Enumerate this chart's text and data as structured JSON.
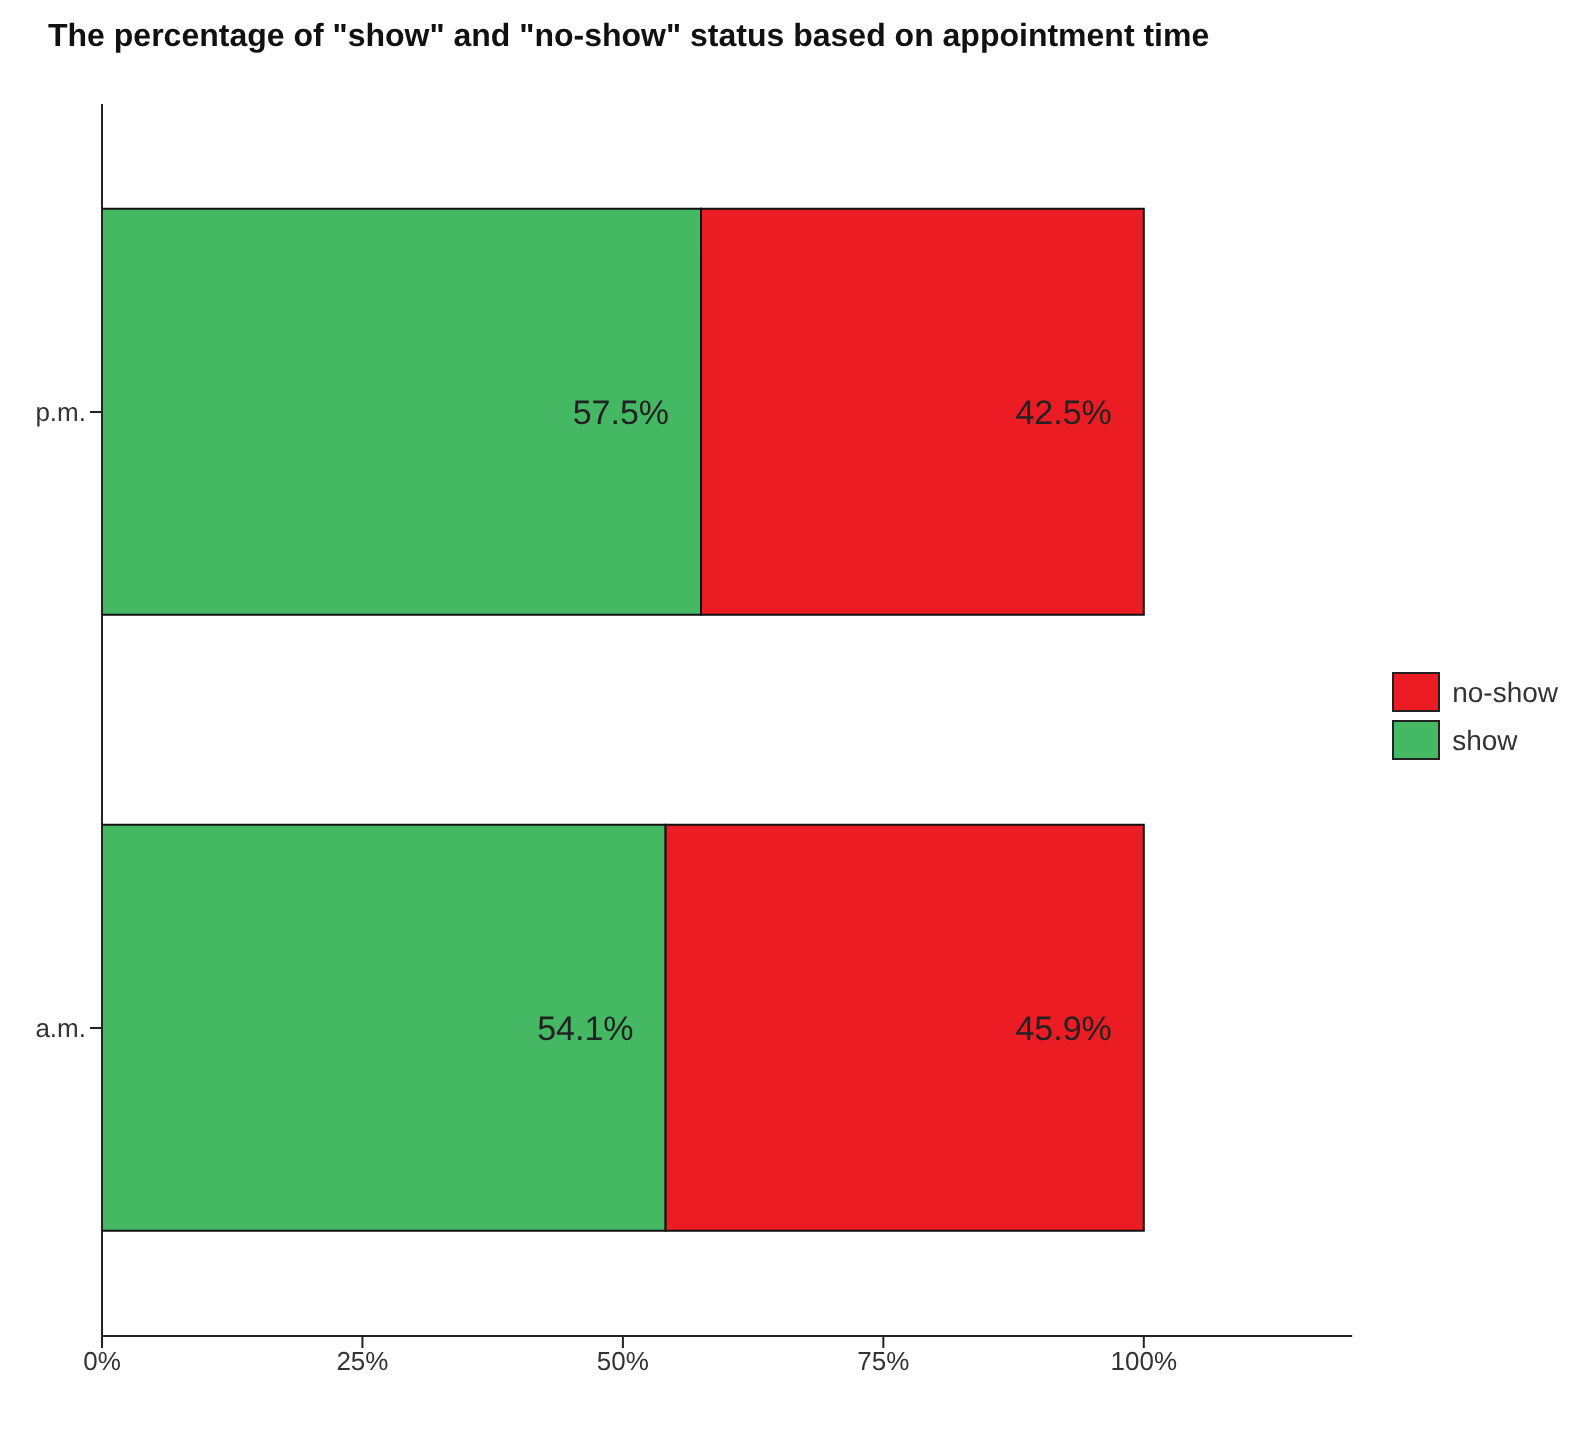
{
  "chart_data": {
    "type": "bar",
    "orientation": "horizontal",
    "stacked": true,
    "title": "The percentage of \"show\" and \"no-show\" status based on appointment time",
    "categories": [
      "p.m.",
      "a.m."
    ],
    "series": [
      {
        "name": "show",
        "color": "#45b864",
        "values": [
          57.5,
          54.1
        ],
        "value_labels": [
          "57.5%",
          "54.1%"
        ]
      },
      {
        "name": "no-show",
        "color": "#ec1c24",
        "values": [
          42.5,
          45.9
        ],
        "value_labels": [
          "42.5%",
          "45.9%"
        ]
      }
    ],
    "xlim": [
      0,
      120
    ],
    "xticks": [
      {
        "value": 0,
        "label": "0%"
      },
      {
        "value": 25,
        "label": "25%"
      },
      {
        "value": 50,
        "label": "50%"
      },
      {
        "value": 75,
        "label": "75%"
      },
      {
        "value": 100,
        "label": "100%"
      }
    ],
    "grid": false,
    "legend": "right"
  }
}
